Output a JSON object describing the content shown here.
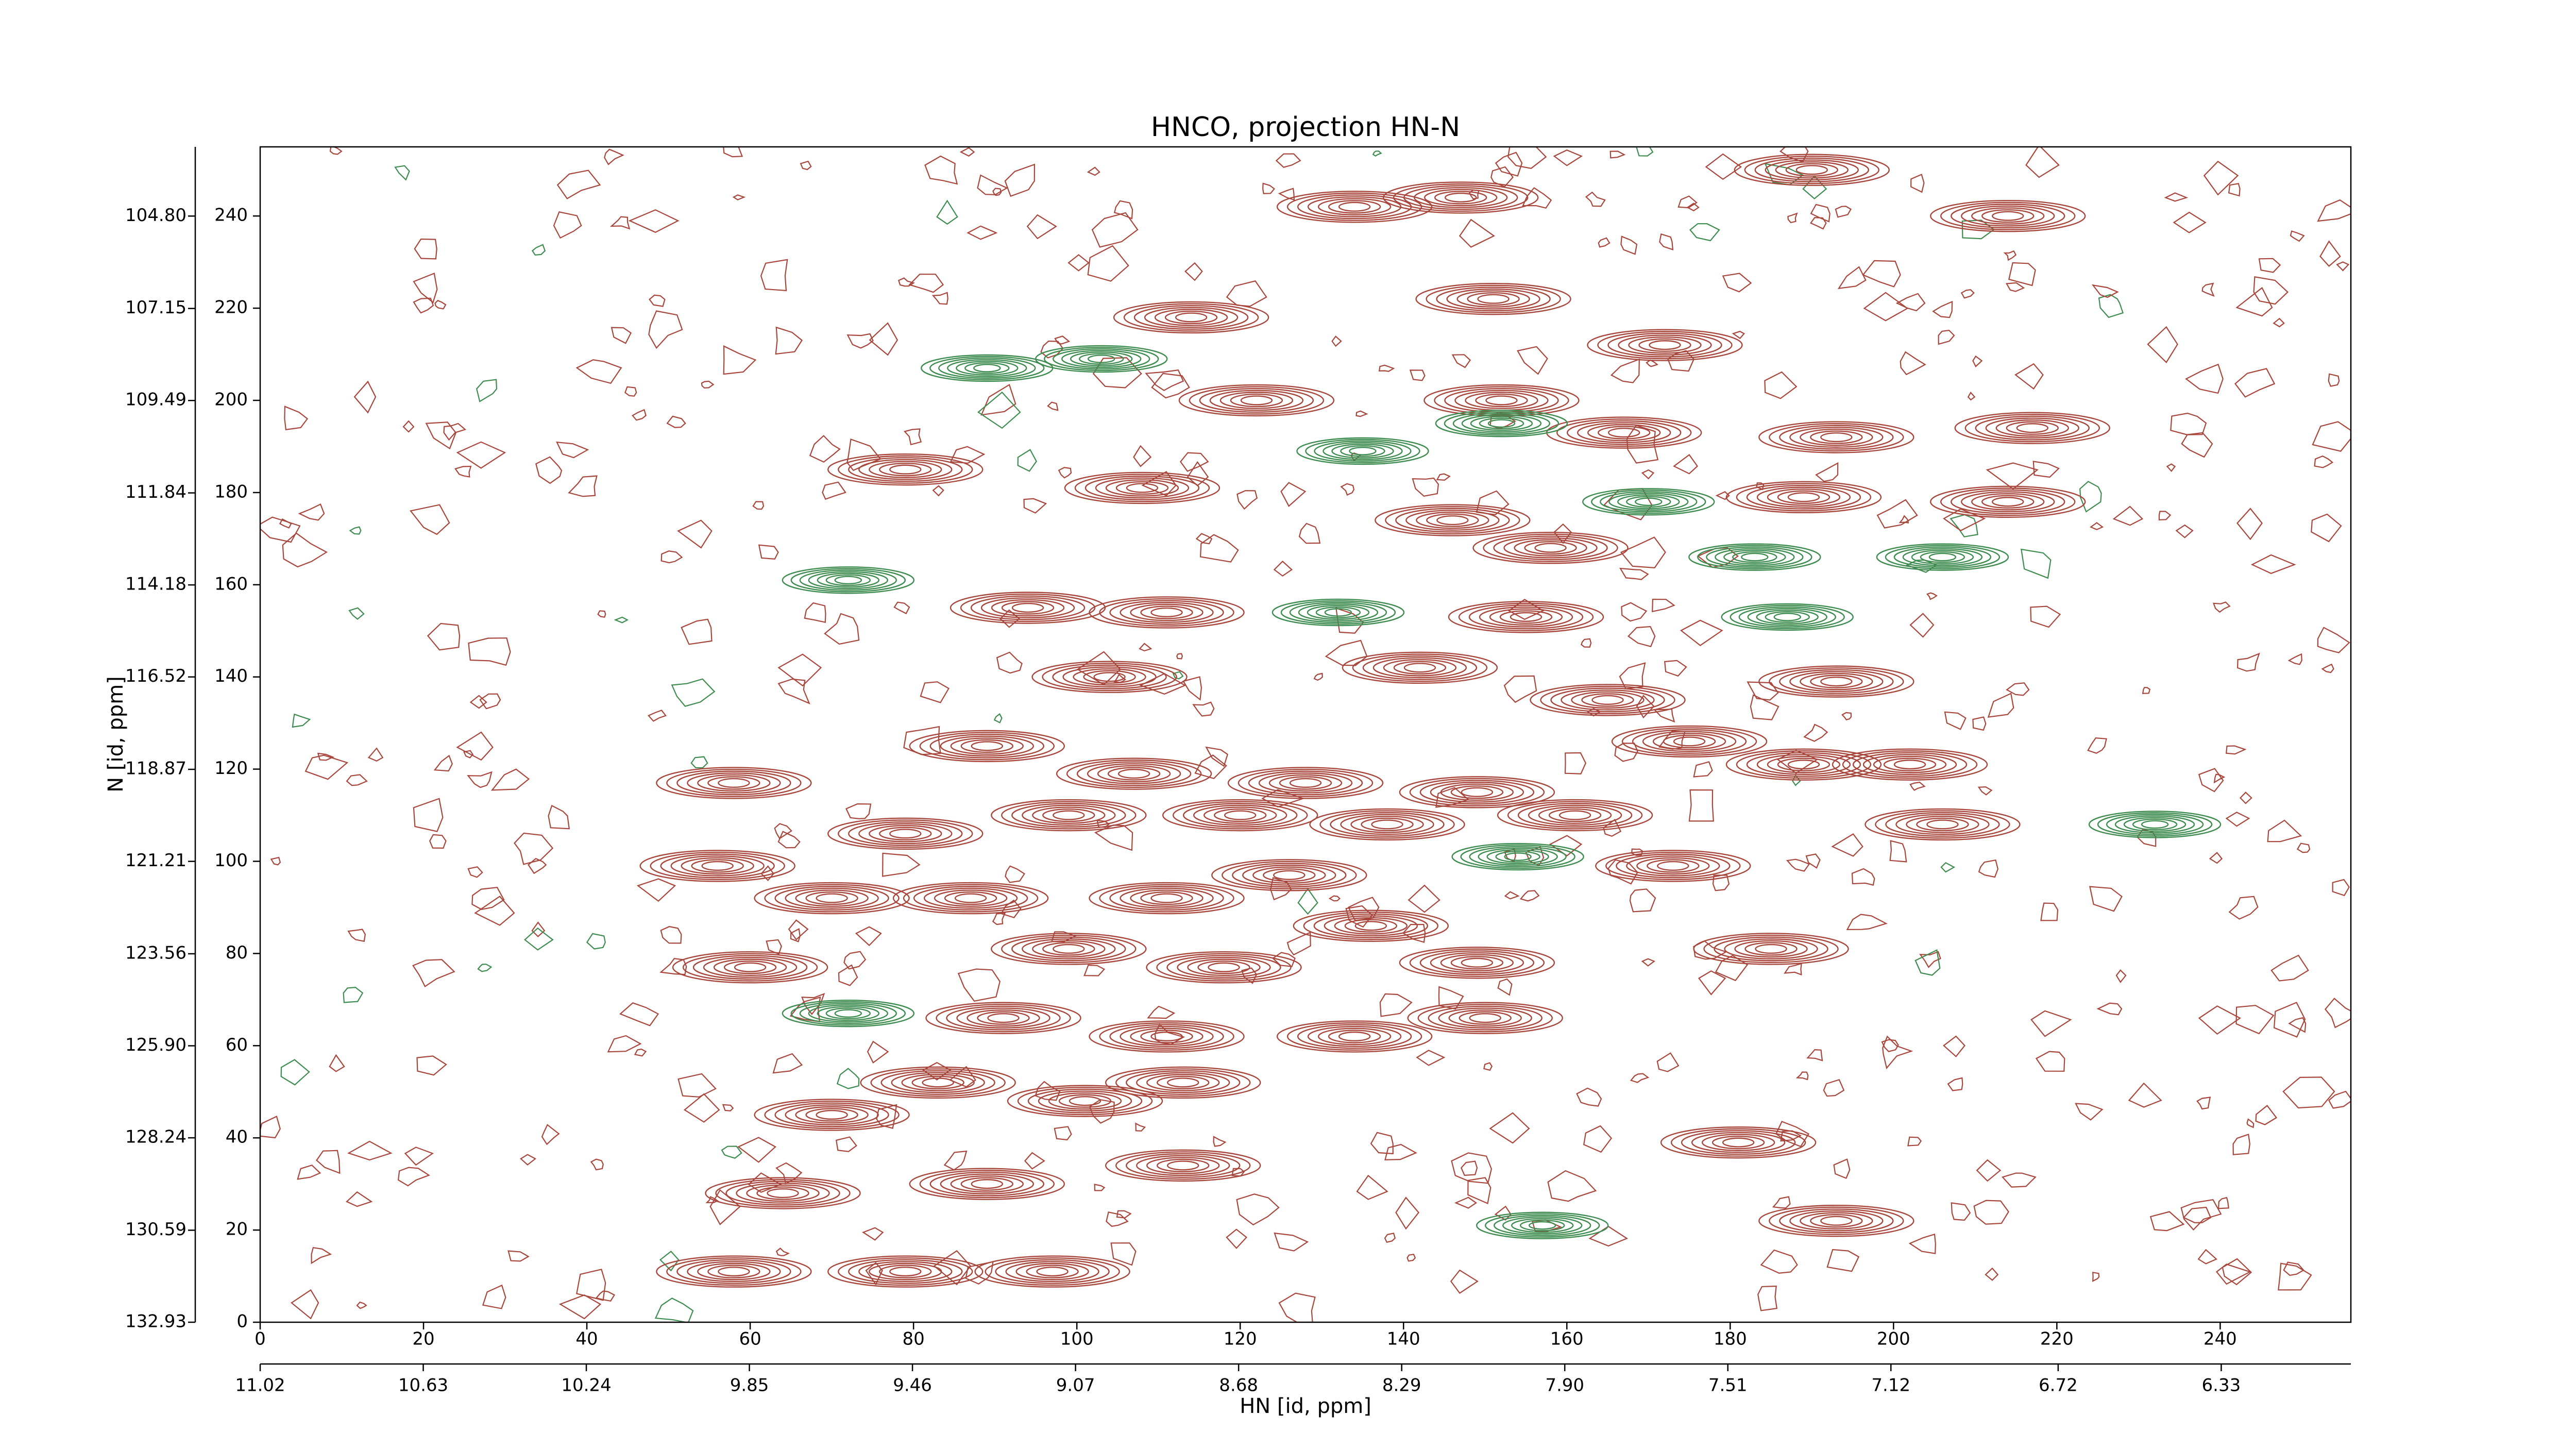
{
  "chart_data": {
    "type": "contour",
    "title": "HNCO, projection HN-N",
    "xlabel": "HN [id, ppm]",
    "ylabel": "N [id, ppm]",
    "xlim": [
      0,
      256
    ],
    "ylim": [
      0,
      255
    ],
    "xticks": [
      0,
      20,
      40,
      60,
      80,
      100,
      120,
      140,
      160,
      180,
      200,
      220,
      240
    ],
    "yticks": [
      0,
      20,
      40,
      60,
      80,
      100,
      120,
      140,
      160,
      180,
      200,
      220,
      240
    ],
    "x2lim": [
      11.02,
      6.02
    ],
    "x2ticks": [
      11.02,
      10.63,
      10.24,
      9.85,
      9.46,
      9.07,
      8.68,
      8.29,
      {
        "value": 7.9,
        "label": "7.90"
      },
      7.51,
      7.12,
      6.72,
      6.33
    ],
    "y2lim": [
      132.93,
      103.04
    ],
    "y2ticks": [
      132.93,
      130.59,
      128.24,
      {
        "value": 125.9,
        "label": "125.90"
      },
      123.56,
      121.21,
      118.87,
      116.52,
      114.18,
      111.84,
      109.49,
      107.15,
      {
        "value": 104.8,
        "label": "104.80"
      }
    ],
    "grid": false,
    "series": [
      {
        "color": "#a8463c",
        "x": [
          114,
          151,
          134,
          147,
          190,
          214,
          172,
          122,
          152,
          167,
          193,
          217,
          79,
          108,
          189,
          214,
          146,
          158,
          94,
          111,
          155,
          104,
          142,
          165,
          193,
          89,
          58,
          107,
          128,
          149,
          175,
          189,
          202,
          206,
          79,
          99,
          120,
          138,
          161,
          173,
          56,
          70,
          87,
          111,
          126,
          136,
          185,
          60,
          99,
          118,
          149,
          91,
          111,
          134,
          150,
          83,
          101,
          113,
          70,
          113,
          64,
          89,
          181,
          193,
          58,
          97,
          79
        ],
        "values": [
          218,
          222,
          242,
          244,
          250,
          240,
          212,
          200,
          200,
          193,
          192,
          194,
          185,
          181,
          179,
          178,
          174,
          168,
          155,
          154,
          153,
          140,
          142,
          135,
          139,
          125,
          117,
          119,
          117,
          115,
          126,
          121,
          121,
          108,
          106,
          110,
          110,
          108,
          110,
          99,
          99,
          92,
          92,
          92,
          97,
          86,
          81,
          77,
          81,
          77,
          78,
          66,
          62,
          62,
          66,
          52,
          48,
          52,
          45,
          34,
          28,
          30,
          39,
          22,
          11,
          11,
          11
        ]
      },
      {
        "color": "#3e8c50",
        "x": [
          72,
          132,
          152,
          183,
          187,
          206,
          170,
          232,
          103,
          89,
          135,
          72,
          157,
          154
        ],
        "values": [
          161,
          154,
          195,
          166,
          153,
          166,
          178,
          108,
          209,
          207,
          189,
          67,
          21,
          101
        ]
      }
    ]
  }
}
